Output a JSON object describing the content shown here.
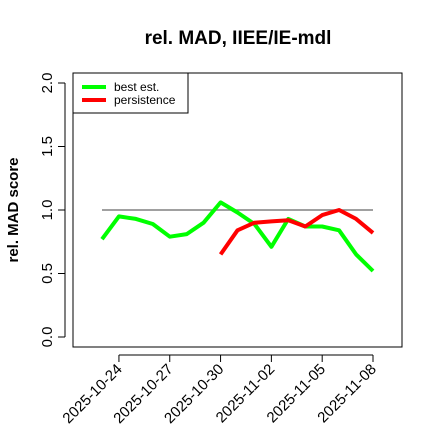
{
  "chart_data": {
    "type": "line",
    "title": "rel. MAD, IIEE/IE-mdl",
    "ylabel": "rel. MAD score",
    "xlabel": "",
    "ylim": [
      0,
      2
    ],
    "yticks": [
      "0.0",
      "0.5",
      "1.0",
      "1.5",
      "2.0"
    ],
    "xticks": [
      "2025-10-24",
      "2025-10-27",
      "2025-10-30",
      "2025-11-02",
      "2025-11-05",
      "2025-11-08"
    ],
    "x": [
      "2025-10-23",
      "2025-10-24",
      "2025-10-25",
      "2025-10-26",
      "2025-10-27",
      "2025-10-28",
      "2025-10-29",
      "2025-10-30",
      "2025-10-31",
      "2025-11-01",
      "2025-11-02",
      "2025-11-03",
      "2025-11-04",
      "2025-11-05",
      "2025-11-06",
      "2025-11-07",
      "2025-11-08"
    ],
    "reference_line": 1.0,
    "legend_position": "top-left",
    "grid": false,
    "series": [
      {
        "name": "best est.",
        "color": "#00ff00",
        "values": [
          0.77,
          0.95,
          0.93,
          0.89,
          0.79,
          0.81,
          0.9,
          1.06,
          0.98,
          0.89,
          0.71,
          0.93,
          0.87,
          0.87,
          0.84,
          0.65,
          0.52
        ]
      },
      {
        "name": "persistence",
        "color": "#ff0000",
        "values": [
          null,
          null,
          null,
          null,
          null,
          null,
          null,
          0.65,
          0.84,
          0.9,
          0.91,
          0.92,
          0.87,
          0.96,
          1.0,
          0.93,
          0.82
        ]
      }
    ]
  }
}
